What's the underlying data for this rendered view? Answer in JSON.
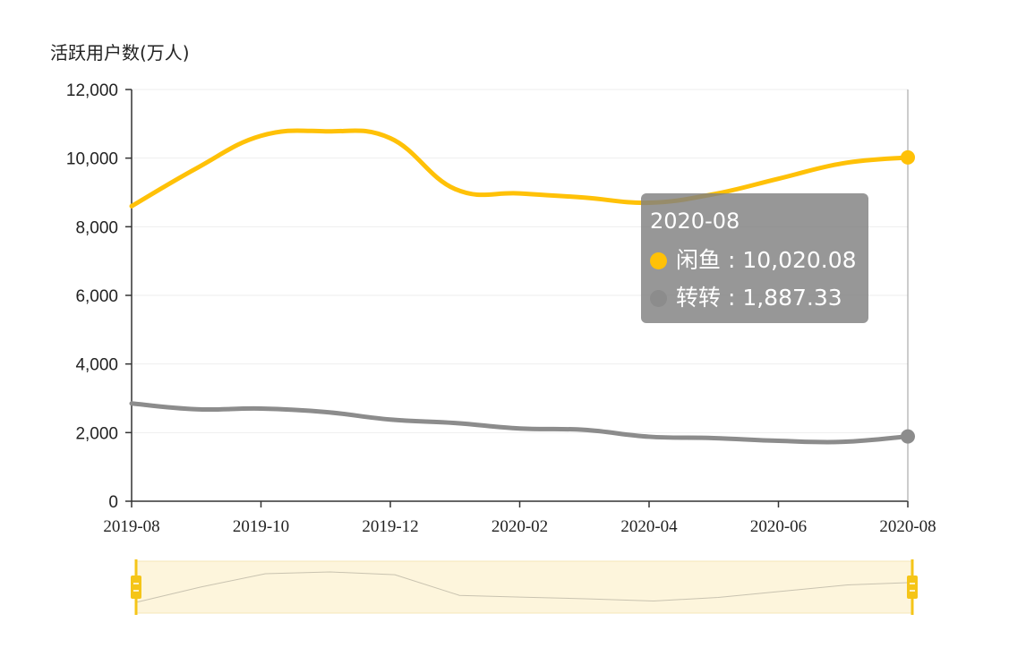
{
  "colors": {
    "series_xianyu": "#FFC107",
    "series_zhuanzhuan": "#8C8C8C",
    "axis": "#333333",
    "grid": "#EEEEEE",
    "slider_bg": "#FDF5DC",
    "slider_handle": "#F5C518"
  },
  "chart_data": {
    "type": "line",
    "title": "",
    "ylabel": "活跃用户数(万人)",
    "xlabel": "",
    "ylim": [
      0,
      12000
    ],
    "yticks": [
      "0",
      "2,000",
      "4,000",
      "6,000",
      "8,000",
      "10,000",
      "12,000"
    ],
    "xticks": [
      "2019-08",
      "2019-10",
      "2019-12",
      "2020-02",
      "2020-04",
      "2020-06",
      "2020-08"
    ],
    "x": [
      "2019-08",
      "2019-09",
      "2019-10",
      "2019-11",
      "2019-12",
      "2020-01",
      "2020-02",
      "2020-03",
      "2020-04",
      "2020-05",
      "2020-06",
      "2020-07",
      "2020-08"
    ],
    "series": [
      {
        "name": "闲鱼",
        "color": "#FFC107",
        "values": [
          8600,
          9700,
          10650,
          10780,
          10580,
          9100,
          8970,
          8850,
          8700,
          8950,
          9400,
          9850,
          10020.08
        ]
      },
      {
        "name": "转转",
        "color": "#8C8C8C",
        "values": [
          2850,
          2680,
          2700,
          2600,
          2380,
          2280,
          2120,
          2080,
          1880,
          1840,
          1760,
          1730,
          1887.33
        ]
      }
    ],
    "grid": true,
    "legend": "none",
    "tooltip": {
      "title": "2020-08",
      "rows": [
        {
          "label": "闲鱼 : 10,020.08",
          "color": "#FFC107"
        },
        {
          "label": "转转 : 1,887.33",
          "color": "#8C8C8C"
        }
      ]
    },
    "data_zoom": {
      "range": [
        "2019-08",
        "2020-08"
      ]
    }
  }
}
